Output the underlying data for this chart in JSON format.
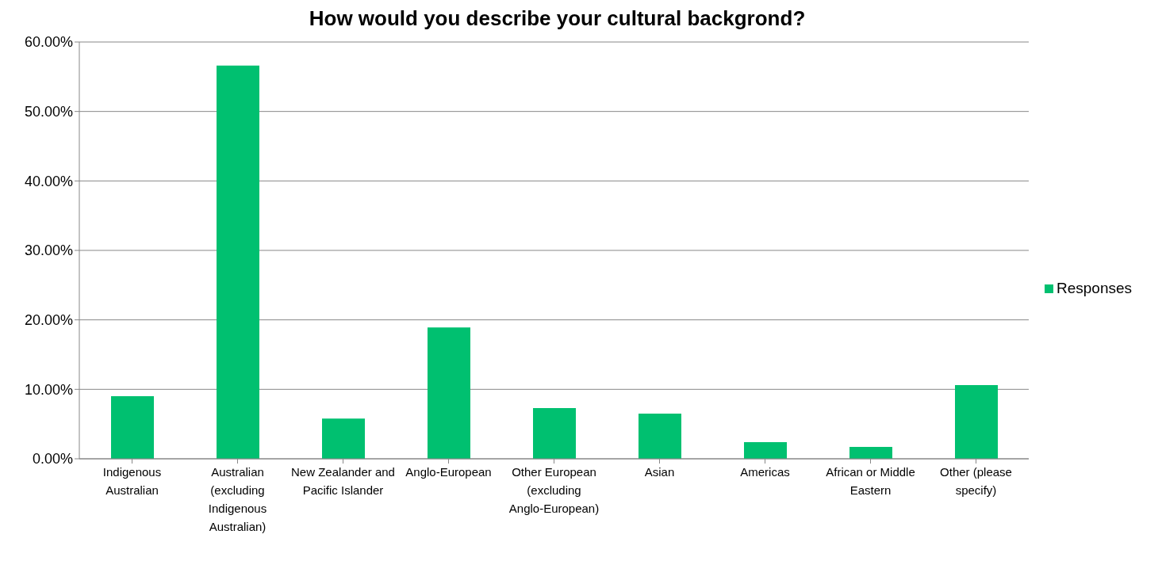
{
  "chart_data": {
    "type": "bar",
    "title": "How would you describe your cultural backgrond?",
    "categories": [
      "Indigenous Australian",
      "Australian (excluding Indigenous Australian)",
      "New Zealander and Pacific Islander",
      "Anglo-European",
      "Other European (excluding Anglo-European)",
      "Asian",
      "Americas",
      "African or Middle Eastern",
      "Other (please specify)"
    ],
    "series": [
      {
        "name": "Responses",
        "color": "#00c070",
        "values": [
          9.0,
          56.6,
          5.8,
          18.9,
          7.3,
          6.5,
          2.4,
          1.7,
          10.6
        ]
      }
    ],
    "ylim": [
      0,
      60
    ],
    "yticks": [
      {
        "value": 0,
        "label": "0.00%"
      },
      {
        "value": 10,
        "label": "10.00%"
      },
      {
        "value": 20,
        "label": "20.00%"
      },
      {
        "value": 30,
        "label": "30.00%"
      },
      {
        "value": 40,
        "label": "40.00%"
      },
      {
        "value": 50,
        "label": "50.00%"
      },
      {
        "value": 60,
        "label": "60.00%"
      }
    ],
    "grid": "y",
    "legend": "right"
  }
}
